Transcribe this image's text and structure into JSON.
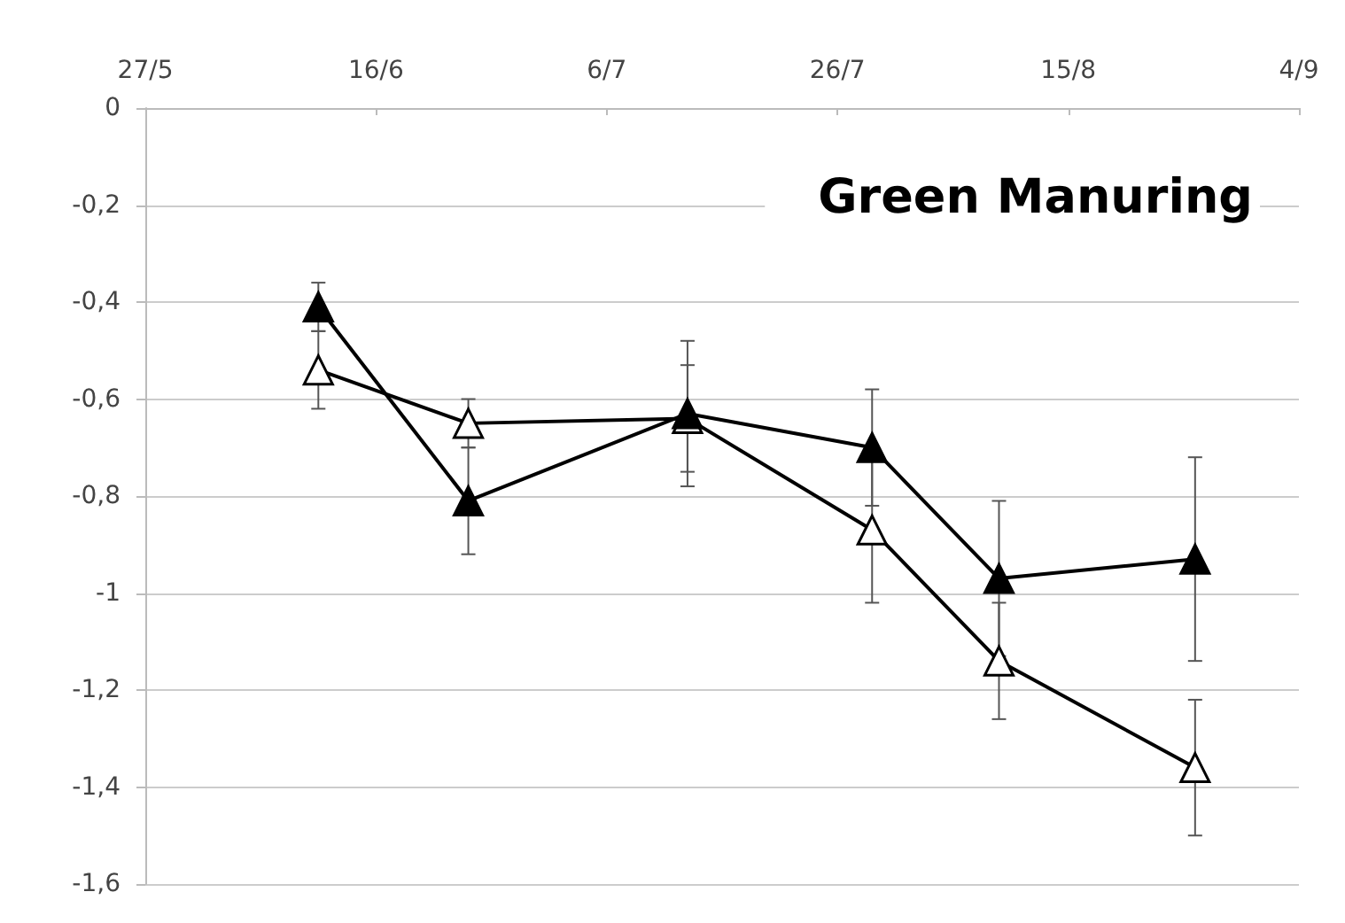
{
  "chart_data": {
    "type": "line",
    "title": "Green Manuring",
    "x": [
      "--06-11",
      "--06-24",
      "--07-13",
      "--07-29",
      "--08-09",
      "--08-26"
    ],
    "series": [
      {
        "color": "#000000",
        "values": [
          -0.41,
          -0.81,
          -0.63,
          -0.7,
          -0.97,
          -0.93
        ],
        "errors": [
          0.05,
          0.11,
          0.15,
          0.12,
          0.16,
          0.21
        ]
      },
      {
        "color": "#ffffff",
        "values": [
          -0.54,
          -0.65,
          -0.64,
          -0.87,
          -1.14,
          -1.36
        ],
        "errors": [
          0.08,
          0.05,
          0.11,
          0.15,
          0.12,
          0.14
        ]
      }
    ],
    "xlim": [
      "--05-27",
      "--09-04"
    ],
    "xticks": [
      {
        "value": "--05-27",
        "label": "27/5"
      },
      {
        "value": "--06-16",
        "label": "16/6"
      },
      {
        "value": "--07-06",
        "label": "6/7"
      },
      {
        "value": "--07-26",
        "label": "26/7"
      },
      {
        "value": "--08-15",
        "label": "15/8"
      },
      {
        "value": "--09-04",
        "label": "4/9"
      }
    ],
    "ylim": [
      -1.6,
      0
    ],
    "yticks": [
      0,
      {
        "value": -0.2,
        "label": "-0,2"
      },
      {
        "value": -0.4,
        "label": "-0,4"
      },
      {
        "value": -0.6,
        "label": "-0,6"
      },
      {
        "value": -0.8,
        "label": "-0,8"
      },
      -1,
      {
        "value": -1.2,
        "label": "-1,2"
      },
      {
        "value": -1.4,
        "label": "-1,4"
      },
      {
        "value": -1.6,
        "label": "-1,6"
      }
    ],
    "grid": "y",
    "marker": "triangle",
    "line_style": "solid"
  }
}
